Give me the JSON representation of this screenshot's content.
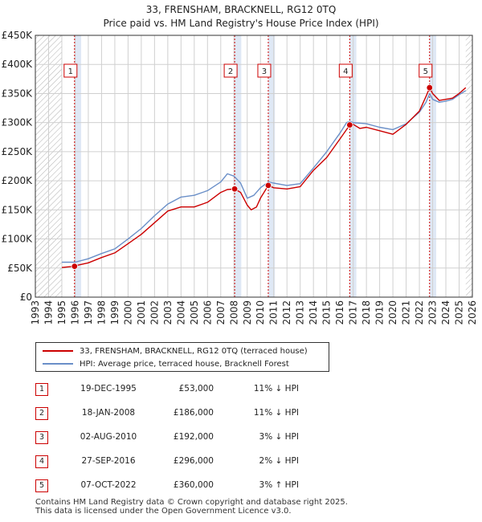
{
  "chart_data": {
    "type": "line",
    "title": "33, FRENSHAM, BRACKNELL, RG12 0TQ",
    "subtitle": "Price paid vs. HM Land Registry's House Price Index (HPI)",
    "xlabel": "",
    "ylabel": "",
    "xlim": [
      1993,
      2026
    ],
    "ylim": [
      0,
      450000
    ],
    "x_ticks": [
      "1993",
      "1994",
      "1995",
      "1996",
      "1997",
      "1998",
      "1999",
      "2000",
      "2001",
      "2002",
      "2003",
      "2004",
      "2005",
      "2006",
      "2007",
      "2008",
      "2009",
      "2010",
      "2011",
      "2012",
      "2013",
      "2014",
      "2015",
      "2016",
      "2017",
      "2018",
      "2019",
      "2020",
      "2021",
      "2022",
      "2023",
      "2024",
      "2025",
      "2026"
    ],
    "y_ticks": [
      {
        "value": 0,
        "label": "£0"
      },
      {
        "value": 50000,
        "label": "£50K"
      },
      {
        "value": 100000,
        "label": "£100K"
      },
      {
        "value": 150000,
        "label": "£150K"
      },
      {
        "value": 200000,
        "label": "£200K"
      },
      {
        "value": 250000,
        "label": "£250K"
      },
      {
        "value": 300000,
        "label": "£300K"
      },
      {
        "value": 350000,
        "label": "£350K"
      },
      {
        "value": 400000,
        "label": "£400K"
      },
      {
        "value": 450000,
        "label": "£450K"
      }
    ],
    "data_start": 1995.0,
    "data_end": 2025.5,
    "series": [
      {
        "name": "33, FRENSHAM, BRACKNELL, RG12 0TQ (terraced house)",
        "color": "#cc0000",
        "x": [
          1995.0,
          1995.96,
          1996.0,
          1997.0,
          1998.0,
          1999.0,
          2000.0,
          2001.0,
          2002.0,
          2003.0,
          2004.0,
          2005.0,
          2006.0,
          2007.0,
          2007.5,
          2008.05,
          2008.5,
          2009.0,
          2009.3,
          2009.7,
          2010.0,
          2010.59,
          2011.0,
          2012.0,
          2013.0,
          2014.0,
          2015.0,
          2016.0,
          2016.74,
          2017.0,
          2017.5,
          2018.0,
          2019.0,
          2020.0,
          2021.0,
          2022.0,
          2022.5,
          2022.77,
          2023.0,
          2023.5,
          2024.0,
          2024.5,
          2025.0,
          2025.5
        ],
        "values": [
          51000,
          53000,
          54000,
          59000,
          68000,
          76000,
          92000,
          108000,
          128000,
          148000,
          155000,
          155000,
          163000,
          180000,
          185000,
          186000,
          180000,
          158000,
          150000,
          155000,
          170000,
          192000,
          188000,
          186000,
          190000,
          218000,
          240000,
          272000,
          296000,
          297000,
          290000,
          292000,
          286000,
          280000,
          297000,
          320000,
          345000,
          360000,
          350000,
          338000,
          340000,
          342000,
          350000,
          360000
        ]
      },
      {
        "name": "HPI: Average price, terraced house, Bracknell Forest",
        "color": "#6a8fc8",
        "x": [
          1995.0,
          1996.0,
          1997.0,
          1998.0,
          1999.0,
          2000.0,
          2001.0,
          2002.0,
          2003.0,
          2004.0,
          2005.0,
          2006.0,
          2007.0,
          2007.5,
          2008.0,
          2008.5,
          2009.0,
          2009.5,
          2010.0,
          2010.59,
          2011.0,
          2012.0,
          2013.0,
          2014.0,
          2015.0,
          2016.0,
          2016.5,
          2016.74,
          2017.0,
          2018.0,
          2019.0,
          2020.0,
          2021.0,
          2022.0,
          2022.5,
          2022.77,
          2023.0,
          2023.5,
          2024.0,
          2024.5,
          2025.0,
          2025.5
        ],
        "values": [
          60000,
          60000,
          66000,
          75000,
          83000,
          100000,
          118000,
          140000,
          160000,
          172000,
          175000,
          183000,
          198000,
          212000,
          208000,
          196000,
          170000,
          175000,
          188000,
          198000,
          196000,
          192000,
          195000,
          222000,
          250000,
          282000,
          300000,
          302000,
          300000,
          298000,
          292000,
          288000,
          298000,
          318000,
          335000,
          350000,
          340000,
          335000,
          337000,
          340000,
          348000,
          355000
        ]
      }
    ],
    "markers": [
      {
        "label": "1",
        "x": 1995.96,
        "value": 53000
      },
      {
        "label": "2",
        "x": 2008.05,
        "value": 186000
      },
      {
        "label": "3",
        "x": 2010.59,
        "value": 192000
      },
      {
        "label": "4",
        "x": 2016.74,
        "value": 296000
      },
      {
        "label": "5",
        "x": 2022.77,
        "value": 360000
      }
    ],
    "colors": {
      "property": "#cc0000",
      "hpi": "#6a8fc8",
      "marker_line": "#cc0000",
      "band": "#dfe8f5",
      "hatch": "#b0b0b0",
      "grid": "#d0d0d0"
    }
  },
  "legend": {
    "property_label": "33, FRENSHAM, BRACKNELL, RG12 0TQ (terraced house)",
    "hpi_label": "HPI: Average price, terraced house, Bracknell Forest"
  },
  "sales": [
    {
      "num": "1",
      "date": "19-DEC-1995",
      "price": "£53,000",
      "hpi": "11% ↓ HPI"
    },
    {
      "num": "2",
      "date": "18-JAN-2008",
      "price": "£186,000",
      "hpi": "11% ↓ HPI"
    },
    {
      "num": "3",
      "date": "02-AUG-2010",
      "price": "£192,000",
      "hpi": "3% ↓ HPI"
    },
    {
      "num": "4",
      "date": "27-SEP-2016",
      "price": "£296,000",
      "hpi": "2% ↓ HPI"
    },
    {
      "num": "5",
      "date": "07-OCT-2022",
      "price": "£360,000",
      "hpi": "3% ↑ HPI"
    }
  ],
  "footer": {
    "line1": "Contains HM Land Registry data © Crown copyright and database right 2025.",
    "line2": "This data is licensed under the Open Government Licence v3.0."
  }
}
